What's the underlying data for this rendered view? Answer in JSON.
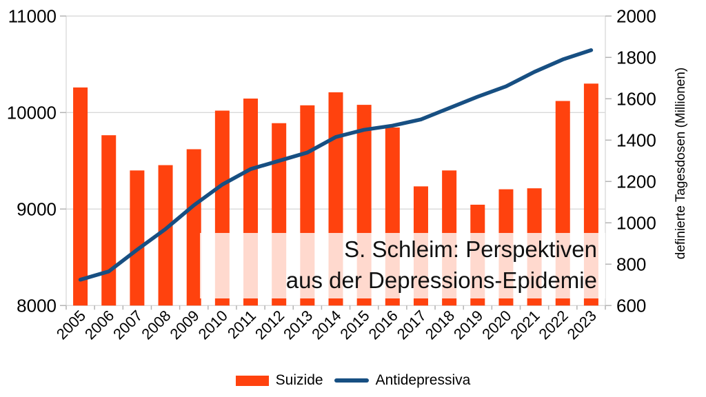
{
  "chart_data": {
    "type": "bar",
    "subtype": "combo-bar-line-dual-axis",
    "categories": [
      "2005",
      "2006",
      "2007",
      "2008",
      "2009",
      "2010",
      "2011",
      "2012",
      "2013",
      "2014",
      "2015",
      "2016",
      "2017",
      "2018",
      "2019",
      "2020",
      "2021",
      "2022",
      "2023"
    ],
    "series": [
      {
        "name": "Suizide",
        "type": "bar",
        "axis": "left",
        "color": "#ff420e",
        "values": [
          10260,
          9765,
          9400,
          9455,
          9620,
          10020,
          10145,
          9890,
          10075,
          10210,
          10080,
          9845,
          9235,
          9400,
          9045,
          9205,
          9215,
          10120,
          10300
        ]
      },
      {
        "name": "Antidepressiva",
        "type": "line",
        "axis": "right",
        "color": "#174f82",
        "values": [
          725,
          765,
          870,
          970,
          1085,
          1185,
          1260,
          1300,
          1340,
          1415,
          1450,
          1470,
          1500,
          1555,
          1610,
          1660,
          1730,
          1790,
          1835
        ]
      }
    ],
    "left_axis": {
      "min": 8000,
      "max": 11000,
      "step": 1000,
      "tick_labels": [
        "8000",
        "9000",
        "10000",
        "11000"
      ]
    },
    "right_axis": {
      "min": 600,
      "max": 2000,
      "step": 200,
      "tick_labels": [
        "600",
        "800",
        "1000",
        "1200",
        "1400",
        "1600",
        "1800",
        "2000"
      ],
      "title": "definierte Tagesdosen (Millionen)"
    },
    "grid": "horizontal-only",
    "legend_position": "bottom",
    "annotation": {
      "line1": "S. Schleim: Perspektiven",
      "line2": "aus der Depressions-Epidemie"
    }
  },
  "legend": {
    "suizide_label": "Suizide",
    "antidepressiva_label": "Antidepressiva"
  },
  "colors": {
    "bar": "#ff420e",
    "line": "#174f82",
    "grid": "#d9d9d9",
    "tick": "#b3b3b3",
    "text": "#000000",
    "overlay": "rgba(255,255,255,0.8)"
  }
}
